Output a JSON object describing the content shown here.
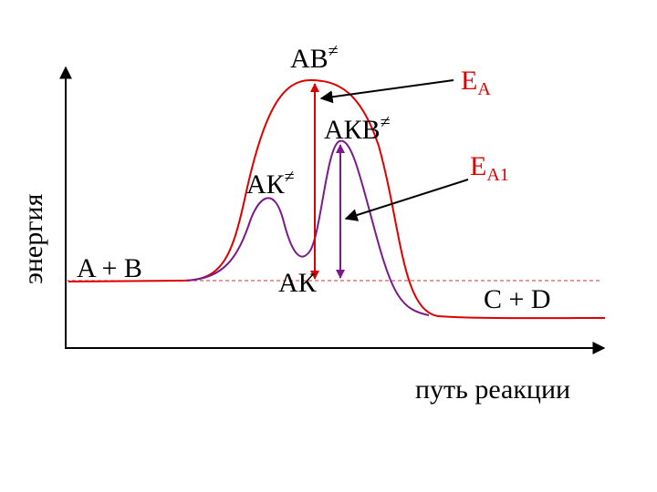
{
  "labels": {
    "ab": {
      "text": "АВ",
      "sup": "≠"
    },
    "ea": {
      "text": "E",
      "sub": "A"
    },
    "akb": {
      "text": "АКВ",
      "sup": "≠"
    },
    "ea1": {
      "text": "E",
      "sub": "A1"
    },
    "ak_ts": {
      "text": "АК",
      "sup": "≠"
    },
    "reactants": {
      "text": "A + B"
    },
    "intermediate": {
      "text": "АК"
    },
    "products": {
      "text": "C + D"
    },
    "y_axis": {
      "text": "энергия"
    },
    "x_axis": {
      "text": "путь реакции"
    }
  }
}
